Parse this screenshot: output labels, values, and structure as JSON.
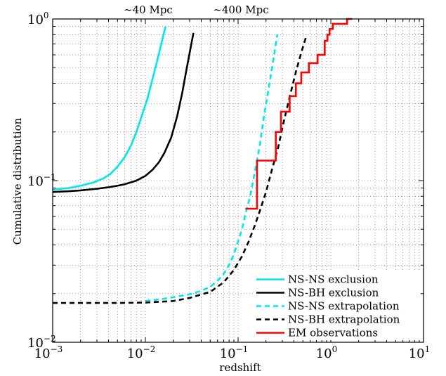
{
  "chart_data": {
    "type": "line",
    "xlabel": "redshift",
    "ylabel": "Cumulative distribution",
    "xscale": "log",
    "yscale": "log",
    "xlim": [
      0.001,
      10
    ],
    "ylim": [
      0.01,
      1
    ],
    "grid": true,
    "legend_position": "bottom-right",
    "x_ticks": [
      {
        "base": "10",
        "exp": "−3",
        "value": 0.001
      },
      {
        "base": "10",
        "exp": "−2",
        "value": 0.01
      },
      {
        "base": "10",
        "exp": "−1",
        "value": 0.1
      },
      {
        "base": "10",
        "exp": "0",
        "value": 1
      },
      {
        "base": "10",
        "exp": "1",
        "value": 10
      }
    ],
    "y_ticks": [
      {
        "base": "10",
        "exp": "−2",
        "value": 0.01
      },
      {
        "base": "10",
        "exp": "−1",
        "value": 0.1
      },
      {
        "base": "10",
        "exp": "0",
        "value": 1
      }
    ],
    "annotations": [
      {
        "text": "∼40 Mpc",
        "x": 0.009
      },
      {
        "text": "∼400 Mpc",
        "x": 0.09
      }
    ],
    "series": [
      {
        "name": "NS-NS exclusion",
        "color": "#00e5e5",
        "style": "solid",
        "points": [
          [
            0.001,
            0.088
          ],
          [
            0.0015,
            0.09
          ],
          [
            0.002,
            0.093
          ],
          [
            0.0027,
            0.097
          ],
          [
            0.0035,
            0.103
          ],
          [
            0.0042,
            0.11
          ],
          [
            0.005,
            0.122
          ],
          [
            0.006,
            0.14
          ],
          [
            0.007,
            0.165
          ],
          [
            0.008,
            0.2
          ],
          [
            0.009,
            0.245
          ],
          [
            0.0105,
            0.32
          ],
          [
            0.012,
            0.43
          ],
          [
            0.0135,
            0.56
          ],
          [
            0.015,
            0.72
          ],
          [
            0.0165,
            0.9
          ]
        ]
      },
      {
        "name": "NS-BH exclusion",
        "color": "#000000",
        "style": "solid",
        "points": [
          [
            0.001,
            0.085
          ],
          [
            0.0015,
            0.086
          ],
          [
            0.002,
            0.087
          ],
          [
            0.003,
            0.089
          ],
          [
            0.004,
            0.091
          ],
          [
            0.005,
            0.093
          ],
          [
            0.006,
            0.095
          ],
          [
            0.008,
            0.1
          ],
          [
            0.01,
            0.107
          ],
          [
            0.012,
            0.117
          ],
          [
            0.014,
            0.13
          ],
          [
            0.016,
            0.148
          ],
          [
            0.019,
            0.185
          ],
          [
            0.022,
            0.25
          ],
          [
            0.025,
            0.35
          ],
          [
            0.028,
            0.5
          ],
          [
            0.031,
            0.68
          ],
          [
            0.033,
            0.82
          ]
        ]
      },
      {
        "name": "NS-NS extrapolation",
        "color": "#00e5e5",
        "style": "dashed",
        "points": [
          [
            0.01,
            0.018
          ],
          [
            0.015,
            0.0185
          ],
          [
            0.02,
            0.019
          ],
          [
            0.03,
            0.0198
          ],
          [
            0.04,
            0.0208
          ],
          [
            0.05,
            0.022
          ],
          [
            0.06,
            0.024
          ],
          [
            0.07,
            0.0265
          ],
          [
            0.08,
            0.03
          ],
          [
            0.09,
            0.035
          ],
          [
            0.1,
            0.042
          ],
          [
            0.11,
            0.05
          ],
          [
            0.12,
            0.062
          ],
          [
            0.135,
            0.08
          ],
          [
            0.15,
            0.11
          ],
          [
            0.17,
            0.16
          ],
          [
            0.19,
            0.25
          ],
          [
            0.215,
            0.38
          ],
          [
            0.24,
            0.56
          ],
          [
            0.265,
            0.8
          ]
        ]
      },
      {
        "name": "NS-BH extrapolation",
        "color": "#000000",
        "style": "dashed",
        "points": [
          [
            0.001,
            0.0175
          ],
          [
            0.002,
            0.0175
          ],
          [
            0.005,
            0.0175
          ],
          [
            0.01,
            0.0176
          ],
          [
            0.02,
            0.018
          ],
          [
            0.03,
            0.0188
          ],
          [
            0.05,
            0.0205
          ],
          [
            0.07,
            0.0235
          ],
          [
            0.09,
            0.028
          ],
          [
            0.11,
            0.034
          ],
          [
            0.13,
            0.042
          ],
          [
            0.15,
            0.052
          ],
          [
            0.17,
            0.064
          ],
          [
            0.2,
            0.085
          ],
          [
            0.23,
            0.115
          ],
          [
            0.27,
            0.16
          ],
          [
            0.31,
            0.23
          ],
          [
            0.36,
            0.33
          ],
          [
            0.42,
            0.47
          ],
          [
            0.48,
            0.62
          ],
          [
            0.55,
            0.8
          ]
        ]
      },
      {
        "name": "EM observations",
        "color": "#ff0000",
        "style": "step",
        "points": [
          [
            0.12,
            0.067
          ],
          [
            0.16,
            0.067
          ],
          [
            0.16,
            0.133
          ],
          [
            0.255,
            0.133
          ],
          [
            0.255,
            0.2
          ],
          [
            0.29,
            0.2
          ],
          [
            0.29,
            0.267
          ],
          [
            0.36,
            0.267
          ],
          [
            0.36,
            0.333
          ],
          [
            0.42,
            0.333
          ],
          [
            0.42,
            0.4
          ],
          [
            0.48,
            0.4
          ],
          [
            0.48,
            0.467
          ],
          [
            0.58,
            0.467
          ],
          [
            0.58,
            0.533
          ],
          [
            0.72,
            0.533
          ],
          [
            0.72,
            0.6
          ],
          [
            0.86,
            0.6
          ],
          [
            0.86,
            0.733
          ],
          [
            0.92,
            0.733
          ],
          [
            0.92,
            0.8
          ],
          [
            0.97,
            0.8
          ],
          [
            0.97,
            0.867
          ],
          [
            1.05,
            0.867
          ],
          [
            1.05,
            0.933
          ],
          [
            1.5,
            0.933
          ],
          [
            1.5,
            1.0
          ],
          [
            1.7,
            1.0
          ]
        ]
      }
    ]
  }
}
